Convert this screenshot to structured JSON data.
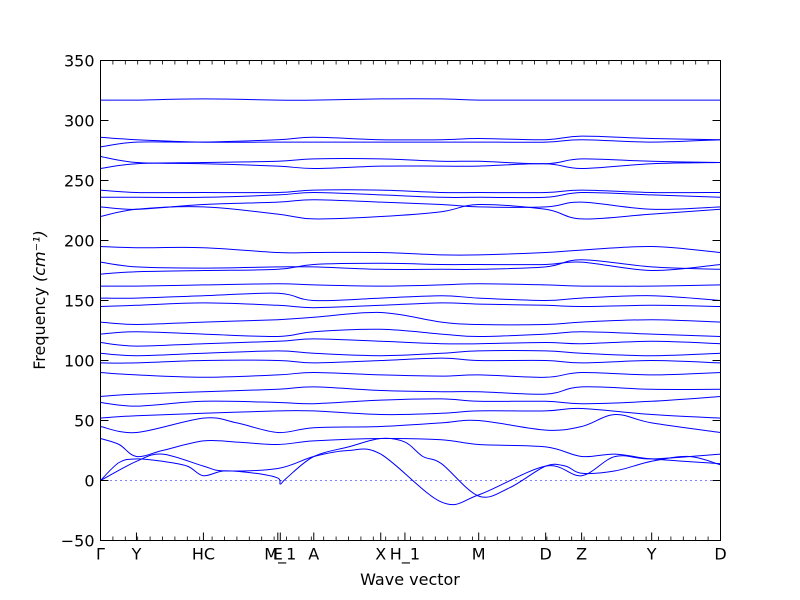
{
  "chart_data": {
    "type": "line",
    "title": "",
    "xlabel": "Wave vector",
    "ylabel": "Frequency",
    "ylabel_unit": "(cm⁻¹)",
    "ylim": [
      -50,
      350
    ],
    "yticks": [
      -50,
      0,
      50,
      100,
      150,
      200,
      250,
      300,
      350
    ],
    "xlim": [
      0,
      100
    ],
    "xticks": [
      {
        "label": "Γ",
        "x": 0
      },
      {
        "label": "Y",
        "x": 5.8
      },
      {
        "label": "HC",
        "x": 16.6
      },
      {
        "label": "E",
        "x": 28.6
      },
      {
        "label": "M_1",
        "x": 29.0
      },
      {
        "label": "A",
        "x": 34.4
      },
      {
        "label": "X",
        "x": 45.2
      },
      {
        "label": "H_1",
        "x": 49.1
      },
      {
        "label": "M",
        "x": 61.0
      },
      {
        "label": "D",
        "x": 71.8
      },
      {
        "label": "Z",
        "x": 77.6
      },
      {
        "label": "Y",
        "x": 88.9
      },
      {
        "label": "D",
        "x": 100
      }
    ],
    "zero_line": 0,
    "band_color": "#0000ff",
    "series": [
      {
        "x": [
          0,
          3,
          5.8,
          10,
          14,
          16.6,
          20,
          25,
          28.6,
          29,
          30,
          34.4,
          40,
          45.2,
          49.1,
          52,
          55,
          61,
          66,
          71.8,
          75,
          77.6,
          83,
          88.9,
          95,
          100
        ],
        "y": [
          0,
          15,
          18,
          16,
          12,
          4,
          8,
          6,
          2,
          -3,
          2,
          20,
          28,
          35,
          32,
          20,
          14,
          -13,
          -6,
          12,
          12,
          6,
          8,
          16,
          20,
          13
        ]
      },
      {
        "x": [
          0,
          5.8,
          10,
          16.6,
          20,
          28.6,
          34.4,
          40,
          45.2,
          55,
          61,
          71.8,
          77.6,
          83,
          88.9,
          100
        ],
        "y": [
          0,
          16,
          22,
          12,
          8,
          10,
          20,
          25,
          22,
          -18,
          -12,
          12,
          4,
          20,
          18,
          22
        ]
      },
      {
        "x": [
          0,
          3,
          5.8,
          10,
          16.6,
          22,
          28.6,
          34.4,
          45.2,
          55,
          61,
          71.8,
          77.6,
          83,
          88.9,
          100
        ],
        "y": [
          35,
          30,
          20,
          25,
          33,
          32,
          30,
          33,
          35,
          34,
          30,
          28,
          20,
          22,
          18,
          14
        ]
      },
      {
        "x": [
          0,
          5.8,
          16.6,
          22,
          28.6,
          34.4,
          45.2,
          55,
          61,
          71.8,
          77.6,
          83,
          88.9,
          100
        ],
        "y": [
          45,
          40,
          52,
          48,
          40,
          44,
          45,
          48,
          50,
          42,
          45,
          55,
          48,
          40
        ]
      },
      {
        "x": [
          0,
          5.8,
          16.6,
          28.6,
          34.4,
          45.2,
          55,
          61,
          71.8,
          77.6,
          88.9,
          100
        ],
        "y": [
          52,
          54,
          56,
          58,
          58,
          55,
          56,
          58,
          58,
          60,
          55,
          52
        ]
      },
      {
        "x": [
          0,
          5.8,
          16.6,
          28.6,
          34.4,
          45.2,
          55,
          61,
          71.8,
          77.6,
          88.9,
          100
        ],
        "y": [
          65,
          62,
          66,
          65,
          64,
          67,
          68,
          66,
          66,
          64,
          66,
          70
        ]
      },
      {
        "x": [
          0,
          5.8,
          16.6,
          28.6,
          34.4,
          45.2,
          55,
          61,
          71.8,
          77.6,
          88.9,
          100
        ],
        "y": [
          70,
          72,
          74,
          76,
          78,
          75,
          74,
          74,
          72,
          78,
          76,
          76
        ]
      },
      {
        "x": [
          0,
          5.8,
          16.6,
          28.6,
          34.4,
          45.2,
          55,
          61,
          71.8,
          77.6,
          88.9,
          100
        ],
        "y": [
          90,
          88,
          86,
          88,
          90,
          88,
          87,
          88,
          86,
          90,
          88,
          90
        ]
      },
      {
        "x": [
          0,
          5.8,
          16.6,
          28.6,
          34.4,
          45.2,
          55,
          61,
          71.8,
          77.6,
          88.9,
          100
        ],
        "y": [
          98,
          98,
          100,
          100,
          98,
          100,
          102,
          100,
          100,
          98,
          100,
          98
        ]
      },
      {
        "x": [
          0,
          5.8,
          16.6,
          28.6,
          34.4,
          45.2,
          55,
          61,
          71.8,
          77.6,
          88.9,
          100
        ],
        "y": [
          106,
          104,
          106,
          108,
          106,
          104,
          106,
          108,
          108,
          106,
          104,
          106
        ]
      },
      {
        "x": [
          0,
          5.8,
          16.6,
          28.6,
          34.4,
          45.2,
          55,
          61,
          71.8,
          77.6,
          88.9,
          100
        ],
        "y": [
          115,
          112,
          114,
          116,
          118,
          116,
          114,
          114,
          115,
          114,
          116,
          114
        ]
      },
      {
        "x": [
          0,
          5.8,
          16.6,
          28.6,
          34.4,
          45.2,
          55,
          61,
          71.8,
          77.6,
          88.9,
          100
        ],
        "y": [
          122,
          124,
          122,
          120,
          124,
          126,
          122,
          120,
          122,
          124,
          122,
          120
        ]
      },
      {
        "x": [
          0,
          5.8,
          16.6,
          28.6,
          34.4,
          45.2,
          55,
          61,
          71.8,
          77.6,
          88.9,
          100
        ],
        "y": [
          132,
          130,
          132,
          134,
          136,
          140,
          132,
          130,
          130,
          132,
          134,
          132
        ]
      },
      {
        "x": [
          0,
          5.8,
          16.6,
          28.6,
          34.4,
          45.2,
          55,
          61,
          71.8,
          77.6,
          88.9,
          100
        ],
        "y": [
          145,
          146,
          148,
          146,
          144,
          146,
          148,
          147,
          146,
          145,
          146,
          145
        ]
      },
      {
        "x": [
          0,
          5.8,
          16.6,
          28.6,
          34.4,
          45.2,
          55,
          61,
          71.8,
          77.6,
          88.9,
          100
        ],
        "y": [
          152,
          152,
          154,
          156,
          150,
          152,
          154,
          152,
          150,
          152,
          154,
          150
        ]
      },
      {
        "x": [
          0,
          5.8,
          16.6,
          28.6,
          34.4,
          45.2,
          55,
          61,
          71.8,
          77.6,
          88.9,
          100
        ],
        "y": [
          162,
          162,
          163,
          164,
          163,
          162,
          163,
          164,
          163,
          162,
          162,
          163
        ]
      },
      {
        "x": [
          0,
          5.8,
          16.6,
          28.6,
          34.4,
          45.2,
          55,
          61,
          71.8,
          77.6,
          88.9,
          100
        ],
        "y": [
          172,
          174,
          175,
          176,
          180,
          181,
          180,
          180,
          180,
          182,
          175,
          180
        ]
      },
      {
        "x": [
          0,
          5.8,
          16.6,
          28.6,
          34.4,
          45.2,
          55,
          61,
          71.8,
          77.6,
          88.9,
          100
        ],
        "y": [
          182,
          178,
          177,
          178,
          178,
          176,
          176,
          176,
          178,
          184,
          178,
          176
        ]
      },
      {
        "x": [
          0,
          5.8,
          16.6,
          28.6,
          34.4,
          45.2,
          55,
          61,
          71.8,
          77.6,
          88.9,
          100
        ],
        "y": [
          195,
          194,
          194,
          190,
          190,
          190,
          188,
          188,
          190,
          192,
          195,
          190
        ]
      },
      {
        "x": [
          0,
          5.8,
          16.6,
          28.6,
          34.4,
          45.2,
          55,
          61,
          71.8,
          77.6,
          88.9,
          100
        ],
        "y": [
          220,
          226,
          228,
          222,
          218,
          220,
          224,
          230,
          226,
          218,
          222,
          226
        ]
      },
      {
        "x": [
          0,
          5.8,
          16.6,
          28.6,
          34.4,
          45.2,
          55,
          61,
          71.8,
          77.6,
          88.9,
          100
        ],
        "y": [
          228,
          226,
          230,
          232,
          234,
          232,
          230,
          228,
          228,
          232,
          226,
          228
        ]
      },
      {
        "x": [
          0,
          5.8,
          16.6,
          28.6,
          34.4,
          45.2,
          55,
          61,
          71.8,
          77.6,
          88.9,
          100
        ],
        "y": [
          236,
          236,
          236,
          238,
          240,
          238,
          236,
          236,
          236,
          240,
          238,
          236
        ]
      },
      {
        "x": [
          0,
          5.8,
          16.6,
          28.6,
          34.4,
          45.2,
          55,
          61,
          71.8,
          77.6,
          88.9,
          100
        ],
        "y": [
          242,
          240,
          240,
          240,
          242,
          242,
          240,
          240,
          240,
          242,
          240,
          240
        ]
      },
      {
        "x": [
          0,
          5.8,
          16.6,
          28.6,
          34.4,
          45.2,
          55,
          61,
          71.8,
          77.6,
          88.9,
          100
        ],
        "y": [
          260,
          264,
          265,
          266,
          268,
          268,
          266,
          266,
          264,
          268,
          266,
          265
        ]
      },
      {
        "x": [
          0,
          5.8,
          16.6,
          28.6,
          34.4,
          45.2,
          55,
          61,
          71.8,
          77.6,
          88.9,
          100
        ],
        "y": [
          270,
          265,
          264,
          262,
          260,
          262,
          262,
          262,
          264,
          260,
          264,
          265
        ]
      },
      {
        "x": [
          0,
          5.8,
          16.6,
          28.6,
          34.4,
          45.2,
          55,
          61,
          71.8,
          77.6,
          88.9,
          100
        ],
        "y": [
          278,
          282,
          282,
          284,
          286,
          284,
          284,
          285,
          284,
          287,
          285,
          284
        ]
      },
      {
        "x": [
          0,
          5.8,
          16.6,
          28.6,
          34.4,
          45.2,
          55,
          61,
          71.8,
          77.6,
          88.9,
          100
        ],
        "y": [
          286,
          284,
          282,
          282,
          282,
          282,
          282,
          282,
          282,
          284,
          282,
          284
        ]
      },
      {
        "x": [
          0,
          5.8,
          16.6,
          28.6,
          34.4,
          45.2,
          55,
          61,
          71.8,
          77.6,
          88.9,
          100
        ],
        "y": [
          317,
          317,
          318,
          317,
          317,
          318,
          318,
          317,
          317,
          317,
          317,
          317
        ]
      }
    ]
  }
}
